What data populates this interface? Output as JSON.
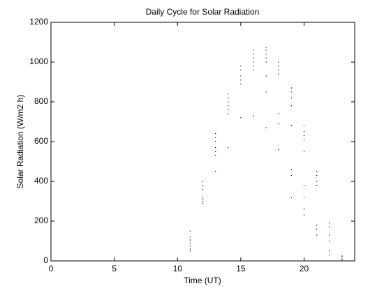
{
  "chart_data": {
    "type": "scatter",
    "title": "Daily Cycle for Solar Radiation",
    "x_label": "Time (UT)",
    "y_label": "Solar Radiation (W/m2 h)",
    "xlim": [
      0,
      24
    ],
    "ylim": [
      0,
      1200
    ],
    "xticks": [
      0,
      5,
      10,
      15,
      20
    ],
    "yticks": [
      0,
      200,
      400,
      600,
      800,
      1000,
      1200
    ],
    "grid": false,
    "series": [
      {
        "color": "#000000",
        "x": [
          11,
          11,
          11,
          11,
          11,
          11,
          11,
          12,
          12,
          12,
          12,
          12,
          12,
          12,
          13,
          13,
          13,
          13,
          13,
          13,
          13,
          14,
          14,
          14,
          14,
          14,
          14,
          14,
          15,
          15,
          15,
          15,
          15,
          15,
          16,
          16,
          16,
          16,
          16,
          16,
          16,
          17,
          17,
          17,
          17,
          17,
          17,
          17,
          17,
          18,
          18,
          18,
          18,
          18,
          18,
          18,
          19,
          19,
          19,
          19,
          19,
          19,
          19,
          19,
          20,
          20,
          20,
          20,
          20,
          20,
          20,
          20,
          20,
          21,
          21,
          21,
          21,
          21,
          21,
          21,
          22,
          22,
          22,
          22,
          22,
          22,
          23,
          23,
          23,
          23
        ],
        "values": [
          50,
          60,
          75,
          90,
          105,
          120,
          150,
          290,
          300,
          310,
          320,
          360,
          380,
          400,
          450,
          530,
          550,
          570,
          600,
          620,
          640,
          570,
          740,
          760,
          780,
          800,
          820,
          840,
          720,
          890,
          910,
          930,
          960,
          980,
          730,
          960,
          980,
          1000,
          1020,
          1040,
          1060,
          670,
          850,
          930,
          1000,
          1020,
          1040,
          1060,
          1075,
          560,
          690,
          740,
          940,
          960,
          980,
          1000,
          320,
          430,
          460,
          680,
          780,
          820,
          850,
          870,
          230,
          260,
          320,
          380,
          550,
          610,
          630,
          650,
          680,
          130,
          160,
          180,
          380,
          400,
          430,
          450,
          30,
          50,
          100,
          130,
          170,
          190,
          5,
          10,
          20,
          25
        ]
      }
    ]
  }
}
